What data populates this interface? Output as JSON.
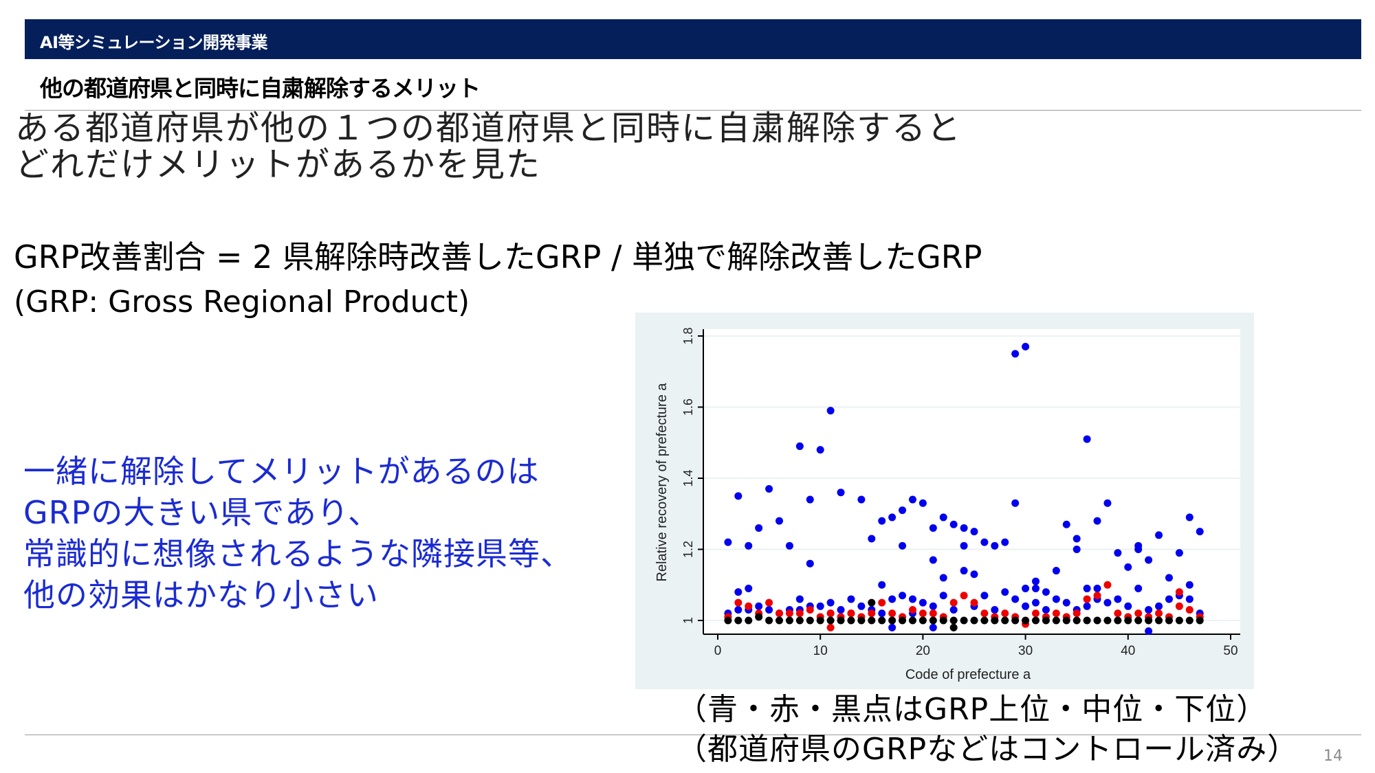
{
  "header": {
    "title": "AI等シミュレーション開発事業"
  },
  "subtitle": "他の都道府県と同時に自粛解除するメリット",
  "intro": {
    "line1": "ある都道府県が他の１つの都道府県と同時に自粛解除すると",
    "line2": "どれだけメリットがあるかを見た"
  },
  "formula": "GRP改善割合 = 2 県解除時改善したGRP / 単独で解除改善したGRP",
  "grp_definition": "(GRP: Gross Regional Product)",
  "conclusion": {
    "line1": "一緒に解除してメリットがあるのは",
    "line2": "GRPの大きい県であり、",
    "line3": "常識的に想像されるような隣接県等、",
    "line4": "他の効果はかなり小さい"
  },
  "note": {
    "line1": "（青・赤・黒点はGRP上位・中位・下位）",
    "line2": "（都道府県のGRPなどはコントロール済み）"
  },
  "page_number": "14",
  "colors": {
    "header_bg": "#041f5a",
    "conclusion_text": "#1b2bd1",
    "chart_bg": "#eaf2f3",
    "series_top": "#0000ee",
    "series_middle": "#ee0000",
    "series_bottom": "#000000"
  },
  "chart_data": {
    "type": "scatter",
    "xlabel": "Code of prefecture a",
    "ylabel": "Relative recovery of prefecture a",
    "xlim": [
      0,
      50
    ],
    "ylim": [
      0.95,
      1.8
    ],
    "xticks": [
      0,
      10,
      20,
      30,
      40,
      50
    ],
    "yticks": [
      1,
      1.2,
      1.4,
      1.6,
      1.8
    ],
    "grid": "horizontal",
    "series": [
      {
        "color": "#0000ee",
        "points": [
          [
            1,
            1.22
          ],
          [
            1,
            1.02
          ],
          [
            2,
            1.35
          ],
          [
            2,
            1.08
          ],
          [
            2,
            1.03
          ],
          [
            3,
            1.21
          ],
          [
            3,
            1.09
          ],
          [
            3,
            1.03
          ],
          [
            4,
            1.26
          ],
          [
            4,
            1.04
          ],
          [
            5,
            1.37
          ],
          [
            5,
            1.03
          ],
          [
            6,
            1.28
          ],
          [
            6,
            1.02
          ],
          [
            7,
            1.21
          ],
          [
            7,
            1.03
          ],
          [
            8,
            1.49
          ],
          [
            8,
            1.06
          ],
          [
            8,
            1.03
          ],
          [
            9,
            1.34
          ],
          [
            9,
            1.16
          ],
          [
            9,
            1.04
          ],
          [
            10,
            1.48
          ],
          [
            10,
            1.04
          ],
          [
            11,
            1.59
          ],
          [
            11,
            1.05
          ],
          [
            11,
            1.02
          ],
          [
            12,
            1.36
          ],
          [
            12,
            1.03
          ],
          [
            13,
            1.06
          ],
          [
            13,
            1.02
          ],
          [
            14,
            1.34
          ],
          [
            14,
            1.04
          ],
          [
            15,
            1.23
          ],
          [
            15,
            1.03
          ],
          [
            16,
            1.28
          ],
          [
            16,
            1.1
          ],
          [
            16,
            1.02
          ],
          [
            17,
            1.29
          ],
          [
            17,
            1.06
          ],
          [
            17,
            0.98
          ],
          [
            18,
            1.31
          ],
          [
            18,
            1.21
          ],
          [
            18,
            1.07
          ],
          [
            19,
            1.34
          ],
          [
            19,
            1.06
          ],
          [
            19,
            1.02
          ],
          [
            20,
            1.33
          ],
          [
            20,
            1.05
          ],
          [
            21,
            1.26
          ],
          [
            21,
            1.17
          ],
          [
            21,
            1.04
          ],
          [
            21,
            0.98
          ],
          [
            22,
            1.29
          ],
          [
            22,
            1.12
          ],
          [
            22,
            1.07
          ],
          [
            23,
            1.27
          ],
          [
            23,
            1.03
          ],
          [
            24,
            1.26
          ],
          [
            24,
            1.21
          ],
          [
            24,
            1.14
          ],
          [
            25,
            1.25
          ],
          [
            25,
            1.13
          ],
          [
            25,
            1.04
          ],
          [
            26,
            1.22
          ],
          [
            26,
            1.07
          ],
          [
            27,
            1.21
          ],
          [
            27,
            1.03
          ],
          [
            28,
            1.22
          ],
          [
            28,
            1.08
          ],
          [
            29,
            1.75
          ],
          [
            29,
            1.33
          ],
          [
            29,
            1.06
          ],
          [
            30,
            1.77
          ],
          [
            30,
            1.09
          ],
          [
            30,
            1.04
          ],
          [
            31,
            1.11
          ],
          [
            31,
            1.09
          ],
          [
            31,
            1.05
          ],
          [
            32,
            1.08
          ],
          [
            32,
            1.03
          ],
          [
            33,
            1.14
          ],
          [
            33,
            1.06
          ],
          [
            34,
            1.27
          ],
          [
            34,
            1.05
          ],
          [
            35,
            1.23
          ],
          [
            35,
            1.2
          ],
          [
            35,
            1.03
          ],
          [
            36,
            1.51
          ],
          [
            36,
            1.09
          ],
          [
            36,
            1.04
          ],
          [
            37,
            1.28
          ],
          [
            37,
            1.09
          ],
          [
            37,
            1.06
          ],
          [
            38,
            1.33
          ],
          [
            38,
            1.05
          ],
          [
            39,
            1.19
          ],
          [
            39,
            1.06
          ],
          [
            40,
            1.15
          ],
          [
            40,
            1.04
          ],
          [
            41,
            1.21
          ],
          [
            41,
            1.2
          ],
          [
            41,
            1.09
          ],
          [
            42,
            1.17
          ],
          [
            42,
            1.03
          ],
          [
            42,
            0.97
          ],
          [
            43,
            1.24
          ],
          [
            43,
            1.04
          ],
          [
            44,
            1.12
          ],
          [
            44,
            1.06
          ],
          [
            45,
            1.19
          ],
          [
            45,
            1.07
          ],
          [
            46,
            1.29
          ],
          [
            46,
            1.1
          ],
          [
            46,
            1.06
          ],
          [
            47,
            1.25
          ],
          [
            47,
            1.02
          ]
        ]
      },
      {
        "color": "#ee0000",
        "points": [
          [
            1,
            1.01
          ],
          [
            2,
            1.05
          ],
          [
            3,
            1.04
          ],
          [
            4,
            1.02
          ],
          [
            5,
            1.05
          ],
          [
            6,
            1.02
          ],
          [
            7,
            1.02
          ],
          [
            8,
            1.02
          ],
          [
            9,
            1.03
          ],
          [
            10,
            1.01
          ],
          [
            11,
            0.98
          ],
          [
            11,
            1.02
          ],
          [
            12,
            1.01
          ],
          [
            13,
            1.02
          ],
          [
            14,
            1.01
          ],
          [
            15,
            1.02
          ],
          [
            16,
            1.05
          ],
          [
            17,
            1.02
          ],
          [
            18,
            1.01
          ],
          [
            19,
            1.03
          ],
          [
            20,
            1.02
          ],
          [
            21,
            1.02
          ],
          [
            22,
            1.01
          ],
          [
            23,
            1.05
          ],
          [
            24,
            1.07
          ],
          [
            25,
            1.05
          ],
          [
            26,
            1.02
          ],
          [
            27,
            1.01
          ],
          [
            28,
            1.02
          ],
          [
            29,
            1.01
          ],
          [
            30,
            0.99
          ],
          [
            31,
            1.02
          ],
          [
            32,
            1.01
          ],
          [
            33,
            1.02
          ],
          [
            34,
            1.01
          ],
          [
            35,
            1.02
          ],
          [
            36,
            1.06
          ],
          [
            37,
            1.07
          ],
          [
            38,
            1.1
          ],
          [
            39,
            1.02
          ],
          [
            40,
            1.01
          ],
          [
            41,
            1.02
          ],
          [
            42,
            1.01
          ],
          [
            43,
            1.02
          ],
          [
            44,
            1.01
          ],
          [
            45,
            1.08
          ],
          [
            45,
            1.04
          ],
          [
            46,
            1.03
          ],
          [
            47,
            1.01
          ]
        ]
      },
      {
        "color": "#000000",
        "points": [
          [
            1,
            1.0
          ],
          [
            2,
            1.0
          ],
          [
            3,
            1.0
          ],
          [
            4,
            1.01
          ],
          [
            5,
            1.0
          ],
          [
            6,
            1.0
          ],
          [
            7,
            1.0
          ],
          [
            8,
            1.0
          ],
          [
            9,
            1.0
          ],
          [
            10,
            1.0
          ],
          [
            11,
            1.0
          ],
          [
            12,
            1.0
          ],
          [
            13,
            1.0
          ],
          [
            14,
            1.0
          ],
          [
            15,
            1.05
          ],
          [
            15,
            1.0
          ],
          [
            16,
            1.0
          ],
          [
            17,
            1.0
          ],
          [
            18,
            1.0
          ],
          [
            19,
            1.0
          ],
          [
            20,
            1.0
          ],
          [
            21,
            1.0
          ],
          [
            22,
            1.0
          ],
          [
            23,
            0.98
          ],
          [
            23,
            1.0
          ],
          [
            24,
            1.0
          ],
          [
            25,
            1.0
          ],
          [
            26,
            1.0
          ],
          [
            27,
            1.0
          ],
          [
            28,
            1.0
          ],
          [
            29,
            1.0
          ],
          [
            30,
            1.0
          ],
          [
            31,
            1.0
          ],
          [
            32,
            1.0
          ],
          [
            33,
            1.0
          ],
          [
            34,
            1.0
          ],
          [
            35,
            1.0
          ],
          [
            36,
            1.0
          ],
          [
            37,
            1.0
          ],
          [
            38,
            1.0
          ],
          [
            39,
            1.0
          ],
          [
            40,
            1.0
          ],
          [
            41,
            1.0
          ],
          [
            42,
            1.0
          ],
          [
            43,
            1.0
          ],
          [
            44,
            1.0
          ],
          [
            45,
            1.0
          ],
          [
            46,
            1.0
          ],
          [
            47,
            1.0
          ]
        ]
      }
    ]
  }
}
